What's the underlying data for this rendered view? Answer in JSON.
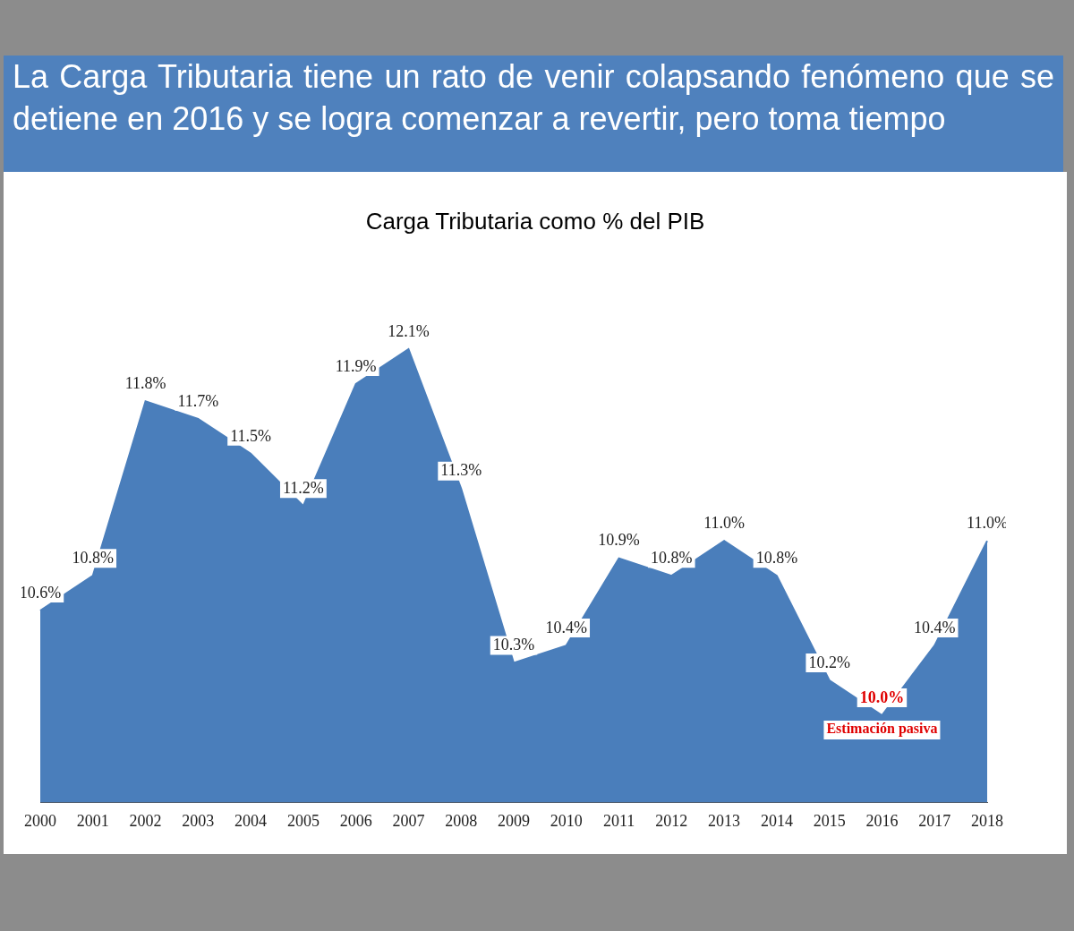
{
  "chart_data": {
    "type": "area",
    "title": "La Carga Tributaria tiene un rato de venir colapsando fenómeno que se detiene en 2016 y se logra comenzar a revertir, pero toma tiempo",
    "subtitle": "Carga Tributaria como % del PIB",
    "categories": [
      "2000",
      "2001",
      "2002",
      "2003",
      "2004",
      "2005",
      "2006",
      "2007",
      "2008",
      "2009",
      "2010",
      "2011",
      "2012",
      "2013",
      "2014",
      "2015",
      "2016",
      "2017",
      "2018"
    ],
    "values": [
      10.6,
      10.8,
      11.8,
      11.7,
      11.5,
      11.2,
      11.9,
      12.1,
      11.3,
      10.3,
      10.4,
      10.9,
      10.8,
      11.0,
      10.8,
      10.2,
      10.0,
      10.4,
      11.0
    ],
    "value_labels": [
      "10.6%",
      "10.8%",
      "11.8%",
      "11.7%",
      "11.5%",
      "11.2%",
      "11.9%",
      "12.1%",
      "11.3%",
      "10.3%",
      "10.4%",
      "10.9%",
      "10.8%",
      "11.0%",
      "10.8%",
      "10.2%",
      "10.0%",
      "10.4%",
      "11.0%"
    ],
    "color": "#4a7ebb",
    "annotations": [
      {
        "text": "Estimación pasiva",
        "x": "2016",
        "y": 10.0
      }
    ],
    "tick_labels": "x",
    "grid": false,
    "legend": false
  }
}
